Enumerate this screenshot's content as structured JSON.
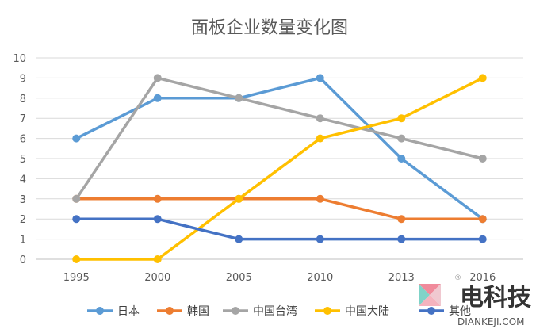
{
  "chart_data": {
    "type": "line",
    "title": "面板企业数量变化图",
    "categories": [
      "1995",
      "2000",
      "2005",
      "2010",
      "2013",
      "2016"
    ],
    "ylim": [
      0,
      10
    ],
    "yticks": [
      0,
      1,
      2,
      3,
      4,
      5,
      6,
      7,
      8,
      9,
      10
    ],
    "grid": true,
    "legend_position": "bottom",
    "series": [
      {
        "name": "日本",
        "color": "#5B9BD5",
        "values": [
          6,
          8,
          8,
          9,
          5,
          2
        ]
      },
      {
        "name": "韩国",
        "color": "#ED7D31",
        "values": [
          3,
          3,
          3,
          3,
          2,
          2
        ]
      },
      {
        "name": "中国台湾",
        "color": "#A5A5A5",
        "values": [
          3,
          9,
          8,
          7,
          6,
          5
        ]
      },
      {
        "name": "中国大陆",
        "color": "#FFC000",
        "values": [
          0,
          0,
          3,
          6,
          7,
          9
        ]
      },
      {
        "name": "其他",
        "color": "#4472C4",
        "values": [
          2,
          2,
          1,
          1,
          1,
          1
        ]
      }
    ]
  },
  "watermark": {
    "registered_mark": "®",
    "brand_cn": "电科技",
    "brand_domain": "DIANKEJI.COM"
  }
}
